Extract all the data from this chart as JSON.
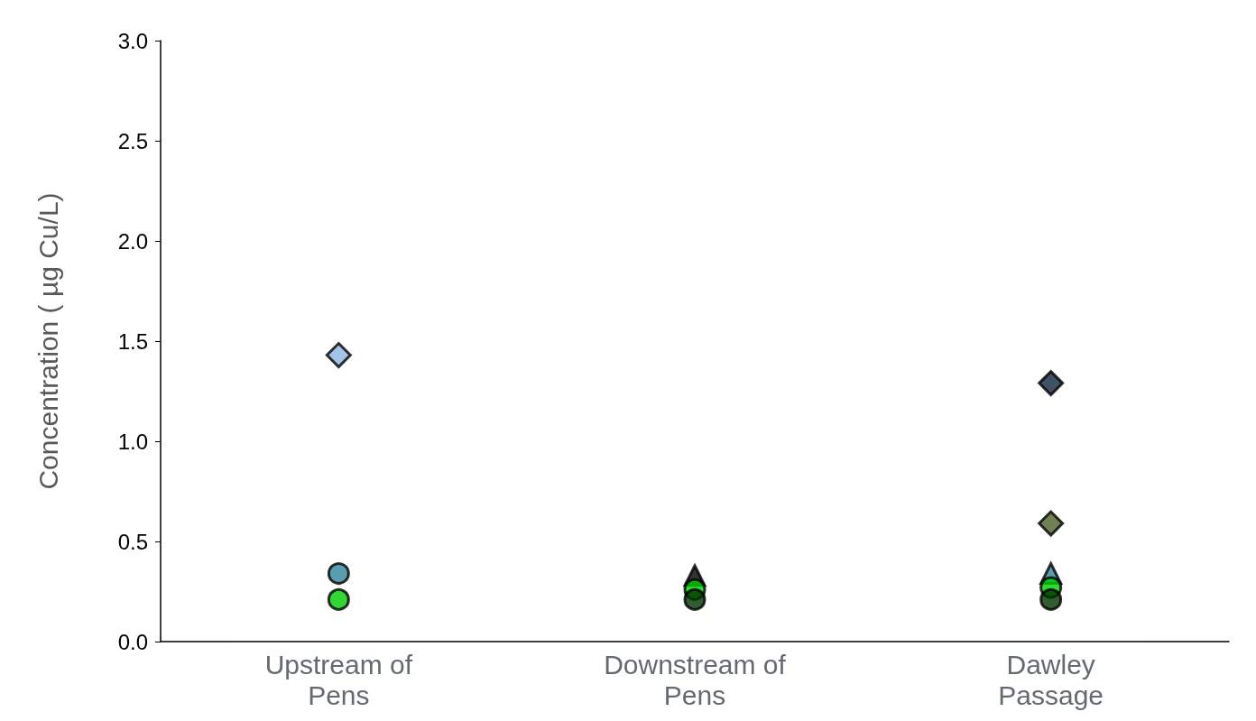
{
  "chart_data": {
    "type": "scatter",
    "ylabel": "Concentration ( µg Cu/L)",
    "categories": [
      "Upstream of Pens",
      "Downstream of Pens",
      "Dawley Passage"
    ],
    "ylim": [
      0,
      3
    ],
    "yticks": [
      {
        "value": 0,
        "label": "0.0"
      },
      {
        "value": 0.5,
        "label": "0.5"
      },
      {
        "value": 1,
        "label": "1.0"
      },
      {
        "value": 1.5,
        "label": "1.5"
      },
      {
        "value": 2,
        "label": "2.0"
      },
      {
        "value": 2.5,
        "label": "2.5"
      },
      {
        "value": 3,
        "label": "3.0"
      }
    ],
    "grid": false,
    "series": [
      {
        "color": "#8db4e2",
        "marker": "diamond",
        "values": [
          1.43,
          null,
          null
        ]
      },
      {
        "color": "#31859c",
        "marker": "circle",
        "values": [
          0.34,
          null,
          null
        ]
      },
      {
        "color": "#000000",
        "marker": "triangle",
        "values": [
          null,
          0.33,
          null
        ]
      },
      {
        "color": "#31859c",
        "marker": "triangle",
        "values": [
          null,
          null,
          0.34
        ]
      },
      {
        "color": "#00cc00",
        "marker": "circle",
        "values": [
          0.21,
          0.26,
          0.27
        ]
      },
      {
        "color": "#003300",
        "marker": "circle",
        "values": [
          null,
          0.21,
          0.21
        ]
      },
      {
        "color": "#10243e",
        "marker": "diamond",
        "values": [
          null,
          null,
          1.29
        ]
      },
      {
        "color": "#4f6228",
        "marker": "diamond",
        "values": [
          null,
          null,
          0.59
        ]
      }
    ]
  }
}
